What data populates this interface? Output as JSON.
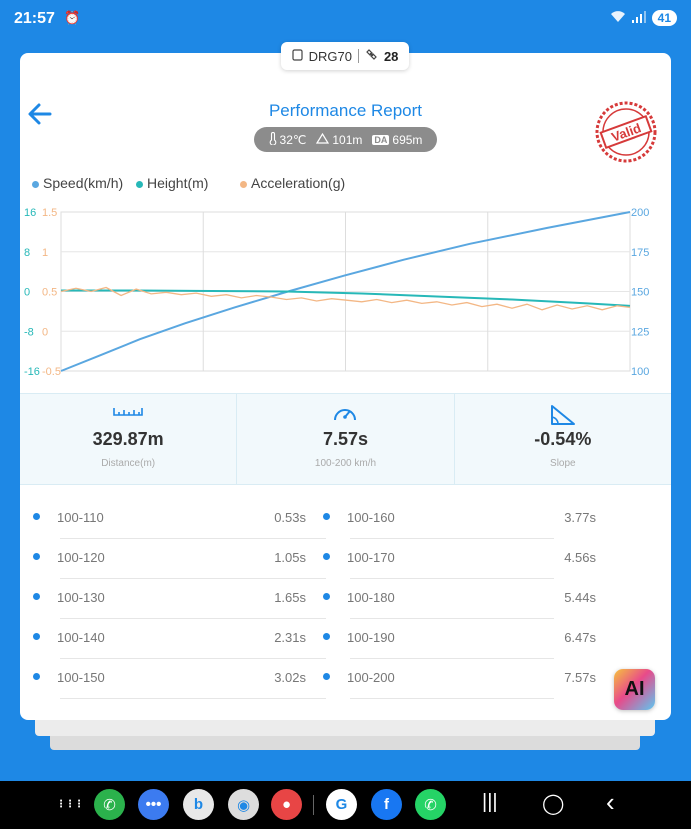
{
  "status_bar": {
    "time": "21:57",
    "battery": "41"
  },
  "device": {
    "name": "DRG70",
    "count": "28"
  },
  "header": {
    "title": "Performance Report",
    "stamp_text": "Valid"
  },
  "conditions": {
    "temperature": "32℃",
    "altitude": "101m",
    "da_badge": "DA",
    "density_altitude": "695m"
  },
  "legend": [
    {
      "label": "Speed(km/h)",
      "color": "#5aa7e0"
    },
    {
      "label": "Height(m)",
      "color": "#27b8b8"
    },
    {
      "label": "Acceleration(g)",
      "color": "#f3b785"
    }
  ],
  "chart_data": {
    "type": "line",
    "title": "",
    "y_axes": {
      "height": {
        "ticks": [
          "16",
          "8",
          "0",
          "-8",
          "-16"
        ],
        "range": [
          -16,
          16
        ],
        "color": "#27b8b8"
      },
      "acceleration": {
        "ticks": [
          "1.5",
          "1",
          "0.5",
          "0",
          "-0.5"
        ],
        "range": [
          -0.5,
          1.5
        ],
        "color": "#f3b785"
      },
      "speed": {
        "ticks": [
          "200",
          "175",
          "150",
          "125",
          "100"
        ],
        "range": [
          100,
          200
        ],
        "color": "#5aa7e0"
      }
    },
    "x_range": [
      0,
      7.57
    ],
    "grid": true,
    "series": [
      {
        "name": "Speed(km/h)",
        "axis": "speed",
        "x": [
          0,
          0.53,
          1.05,
          1.65,
          2.31,
          3.02,
          3.77,
          4.56,
          5.44,
          6.47,
          7.57
        ],
        "y": [
          100,
          110,
          120,
          130,
          140,
          150,
          160,
          170,
          180,
          190,
          200
        ]
      },
      {
        "name": "Height(m)",
        "axis": "height",
        "x": [
          0,
          1,
          2,
          3,
          4,
          5,
          6,
          7,
          7.57
        ],
        "y": [
          0.2,
          0.2,
          0.1,
          0.0,
          -0.4,
          -1.0,
          -1.6,
          -2.4,
          -2.9
        ]
      },
      {
        "name": "Acceleration(g)",
        "axis": "acceleration",
        "x": [
          0,
          0.2,
          0.4,
          0.6,
          0.8,
          1.0,
          1.2,
          1.4,
          1.6,
          1.8,
          2.0,
          2.2,
          2.4,
          2.6,
          2.8,
          3.0,
          3.2,
          3.4,
          3.6,
          3.8,
          4.0,
          4.2,
          4.4,
          4.6,
          4.8,
          5.0,
          5.2,
          5.4,
          5.6,
          5.8,
          6.0,
          6.2,
          6.4,
          6.6,
          6.8,
          7.0,
          7.2,
          7.4,
          7.57
        ],
        "y": [
          0.5,
          0.54,
          0.5,
          0.55,
          0.45,
          0.53,
          0.47,
          0.49,
          0.46,
          0.48,
          0.44,
          0.46,
          0.42,
          0.45,
          0.43,
          0.4,
          0.42,
          0.38,
          0.41,
          0.39,
          0.37,
          0.4,
          0.36,
          0.39,
          0.35,
          0.37,
          0.33,
          0.36,
          0.31,
          0.34,
          0.29,
          0.34,
          0.27,
          0.33,
          0.28,
          0.32,
          0.27,
          0.32,
          0.3
        ]
      }
    ]
  },
  "stats": [
    {
      "icon": "ruler-icon",
      "value": "329.87m",
      "label": "Distance(m)"
    },
    {
      "icon": "speedometer-icon",
      "value": "7.57s",
      "label": "100-200 km/h"
    },
    {
      "icon": "slope-icon",
      "value": "-0.54%",
      "label": "Slope"
    }
  ],
  "splits_left": [
    {
      "range": "100-110",
      "time": "0.53s"
    },
    {
      "range": "100-120",
      "time": "1.05s"
    },
    {
      "range": "100-130",
      "time": "1.65s"
    },
    {
      "range": "100-140",
      "time": "2.31s"
    },
    {
      "range": "100-150",
      "time": "3.02s"
    }
  ],
  "splits_right": [
    {
      "range": "100-160",
      "time": "3.77s"
    },
    {
      "range": "100-170",
      "time": "4.56s"
    },
    {
      "range": "100-180",
      "time": "5.44s"
    },
    {
      "range": "100-190",
      "time": "6.47s"
    },
    {
      "range": "100-200",
      "time": "7.57s"
    }
  ],
  "ai_button": {
    "label": "AI"
  },
  "nav_apps": [
    {
      "name": "app-drawer-icon",
      "glyph": "⋮⋮⋮",
      "color": "#000000"
    },
    {
      "name": "phone-app-icon",
      "glyph": "✆",
      "color": "#2bb24c"
    },
    {
      "name": "messages-app-icon",
      "glyph": "•••",
      "color": "#3c7bf0"
    },
    {
      "name": "bing-app-icon",
      "glyph": "b",
      "color": "#e8e8e8"
    },
    {
      "name": "camera-app-icon",
      "glyph": "◉",
      "color": "#dddddd"
    },
    {
      "name": "contacts-app-icon",
      "glyph": "●",
      "color": "#e84545"
    },
    {
      "name": "google-app-icon",
      "glyph": "G",
      "color": "#ffffff"
    },
    {
      "name": "facebook-app-icon",
      "glyph": "f",
      "color": "#1877f2"
    },
    {
      "name": "whatsapp-app-icon",
      "glyph": "✆",
      "color": "#25d366"
    }
  ],
  "nav_buttons": {
    "recents": "|||",
    "home": "◯",
    "back": "‹"
  }
}
